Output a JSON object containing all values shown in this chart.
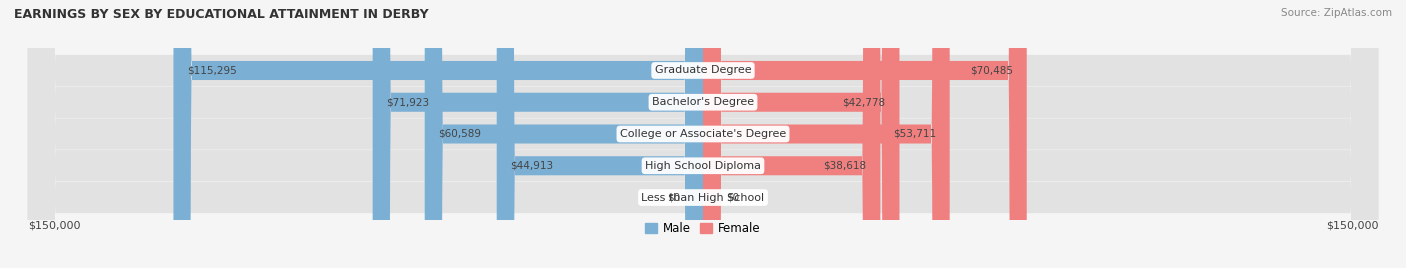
{
  "title": "EARNINGS BY SEX BY EDUCATIONAL ATTAINMENT IN DERBY",
  "source": "Source: ZipAtlas.com",
  "categories": [
    "Less than High School",
    "High School Diploma",
    "College or Associate's Degree",
    "Bachelor's Degree",
    "Graduate Degree"
  ],
  "male_values": [
    0,
    44913,
    60589,
    71923,
    115295
  ],
  "female_values": [
    0,
    38618,
    53711,
    42778,
    70485
  ],
  "male_color": "#7bafd4",
  "female_color": "#f08080",
  "male_label": "Male",
  "female_label": "Female",
  "axis_limit": 150000,
  "background_color": "#f5f5f5",
  "row_bg_color": "#e2e2e2",
  "label_color": "#444444",
  "title_color": "#333333",
  "xlabel_left": "$150,000",
  "xlabel_right": "$150,000"
}
